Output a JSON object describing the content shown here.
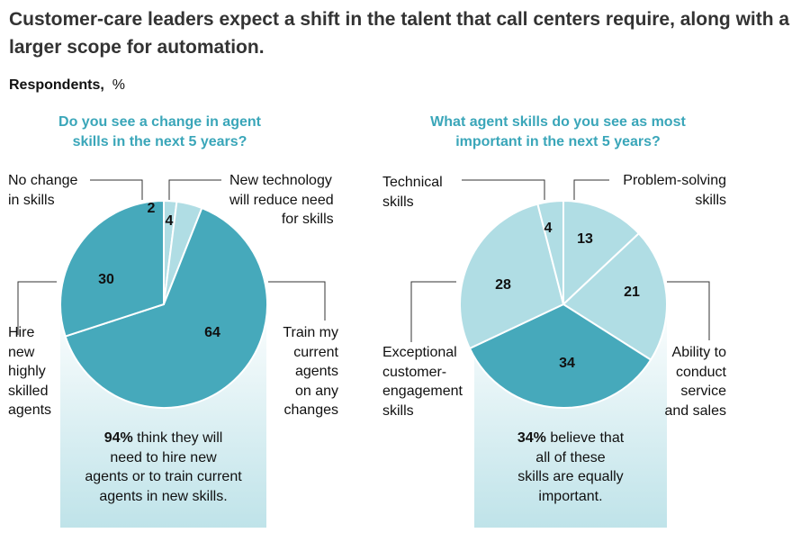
{
  "headline": "Customer-care leaders expect a shift in the talent that call centers require, along with a larger scope for automation.",
  "respondents": {
    "bold": "Respondents,",
    "unit": "%"
  },
  "colors": {
    "dark_teal": "#46a9bb",
    "light_teal": "#b0dde4",
    "gradient_top": "#ffffff",
    "gradient_bottom": "#bfe3e9",
    "title_teal": "#3aa6b9"
  },
  "chart_data": [
    {
      "type": "pie",
      "title_lines": [
        "Do you see a change in agent",
        "skills in the next 5 years?"
      ],
      "slices": [
        {
          "name": [
            "No change",
            "in skills"
          ],
          "value": 2
        },
        {
          "name": [
            "New technology",
            "will reduce need",
            "for skills"
          ],
          "value": 4
        },
        {
          "name": [
            "Train my",
            "current",
            "agents",
            "on any",
            "changes"
          ],
          "value": 64
        },
        {
          "name": [
            "Hire",
            "new",
            "highly",
            "skilled",
            "agents"
          ],
          "value": 30
        }
      ],
      "note": {
        "bold": "94%",
        "lines": [
          " think they will",
          "need to hire new",
          "agents or to train current",
          "agents in new skills."
        ]
      }
    },
    {
      "type": "pie",
      "title_lines": [
        "What agent skills do you see as most",
        "important in the next 5 years?"
      ],
      "slices": [
        {
          "name": [
            "Problem-solving",
            "skills"
          ],
          "value": 13
        },
        {
          "name": [
            "Ability to",
            "conduct",
            "service",
            "and sales"
          ],
          "value": 21
        },
        {
          "name": [],
          "value": 34
        },
        {
          "name": [
            "Exceptional",
            "customer-",
            "engagement",
            "skills"
          ],
          "value": 28
        },
        {
          "name": [
            "Technical",
            "skills"
          ],
          "value": 4
        }
      ],
      "note": {
        "bold": "34%",
        "lines": [
          " believe that",
          "all of these",
          "skills are equally",
          "important."
        ]
      }
    }
  ]
}
